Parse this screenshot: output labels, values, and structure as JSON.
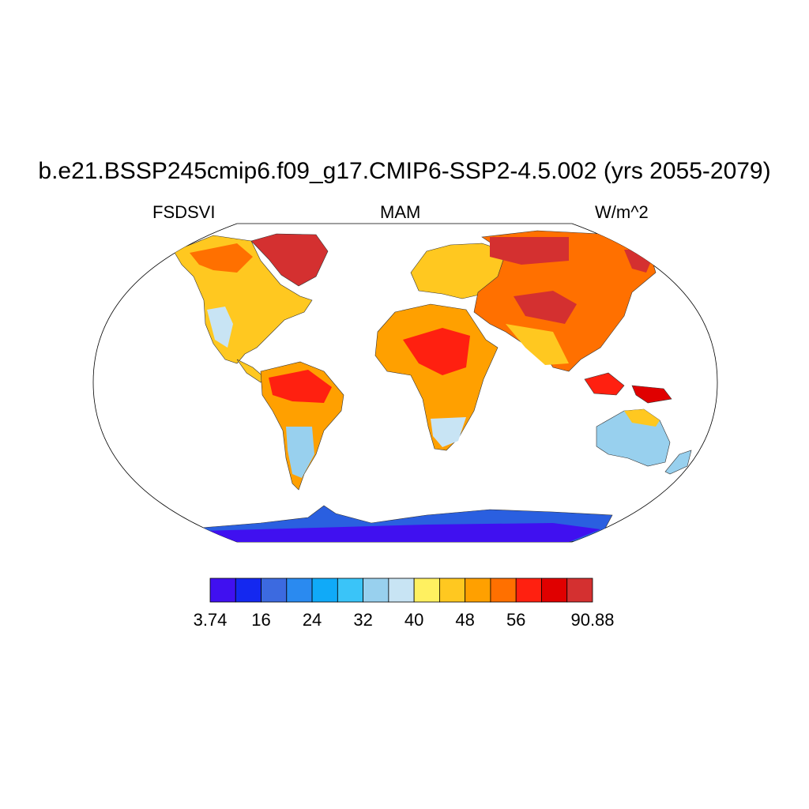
{
  "header": {
    "title": "b.e21.BSSP245cmip6.f09_g17.CMIP6-SSP2-4.5.002 (yrs 2055-2079)",
    "left_label": "FSDSVI",
    "center_label": "MAM",
    "right_label": "W/m^2"
  },
  "colorbar": {
    "colors": [
      "#4010f0",
      "#1428f0",
      "#3c6ae0",
      "#2a8af0",
      "#10aaf8",
      "#3ac4f8",
      "#98d0ee",
      "#c8e4f4",
      "#fff060",
      "#ffc820",
      "#ffa000",
      "#ff7000",
      "#ff2010",
      "#e00000",
      "#d43030"
    ],
    "tick_labels": [
      {
        "text": "3.74",
        "index": 0
      },
      {
        "text": "16",
        "index": 2
      },
      {
        "text": "24",
        "index": 4
      },
      {
        "text": "32",
        "index": 6
      },
      {
        "text": "40",
        "index": 8
      },
      {
        "text": "48",
        "index": 10
      },
      {
        "text": "56",
        "index": 12
      },
      {
        "text": "90.88",
        "index": 15
      }
    ]
  }
}
